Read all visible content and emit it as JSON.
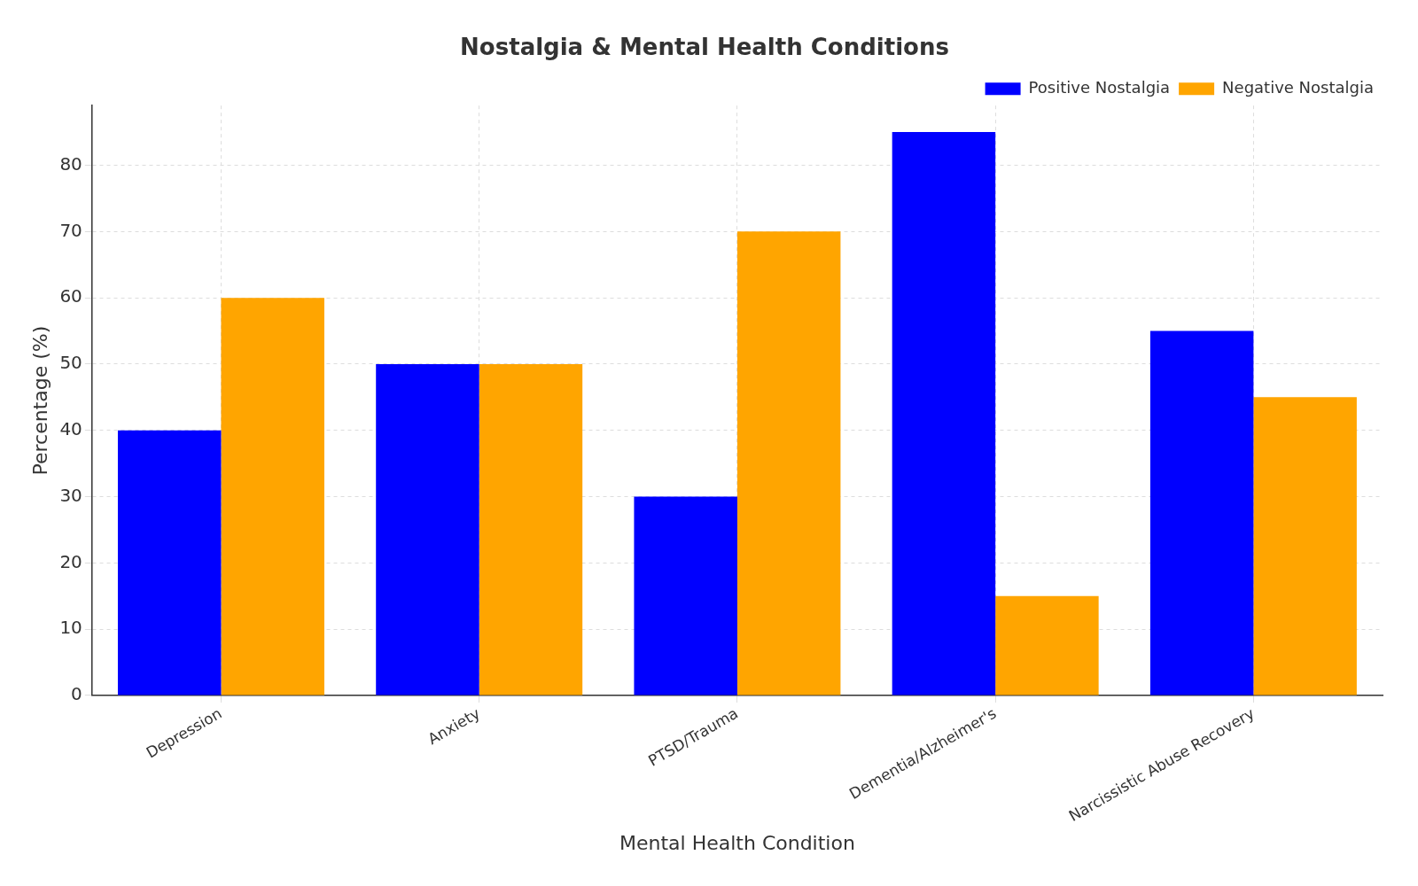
{
  "chart_data": {
    "type": "bar",
    "title": "Nostalgia & Mental Health Conditions",
    "x_label": "Mental Health Condition",
    "y_label": "Percentage (%)",
    "categories": [
      "Depression",
      "Anxiety",
      "PTSD/Trauma",
      "Dementia/Alzheimer's",
      "Narcissistic Abuse Recovery"
    ],
    "series": [
      {
        "name": "Positive Nostalgia",
        "color": "#0000ff",
        "values": [
          40,
          50,
          30,
          85,
          55
        ]
      },
      {
        "name": "Negative Nostalgia",
        "color": "#ffa500",
        "values": [
          60,
          50,
          70,
          15,
          45
        ]
      }
    ],
    "ylim": [
      0,
      89
    ],
    "yticks": [
      0,
      10,
      20,
      30,
      40,
      50,
      60,
      70,
      80
    ],
    "grid": true,
    "legend": "upper right"
  }
}
